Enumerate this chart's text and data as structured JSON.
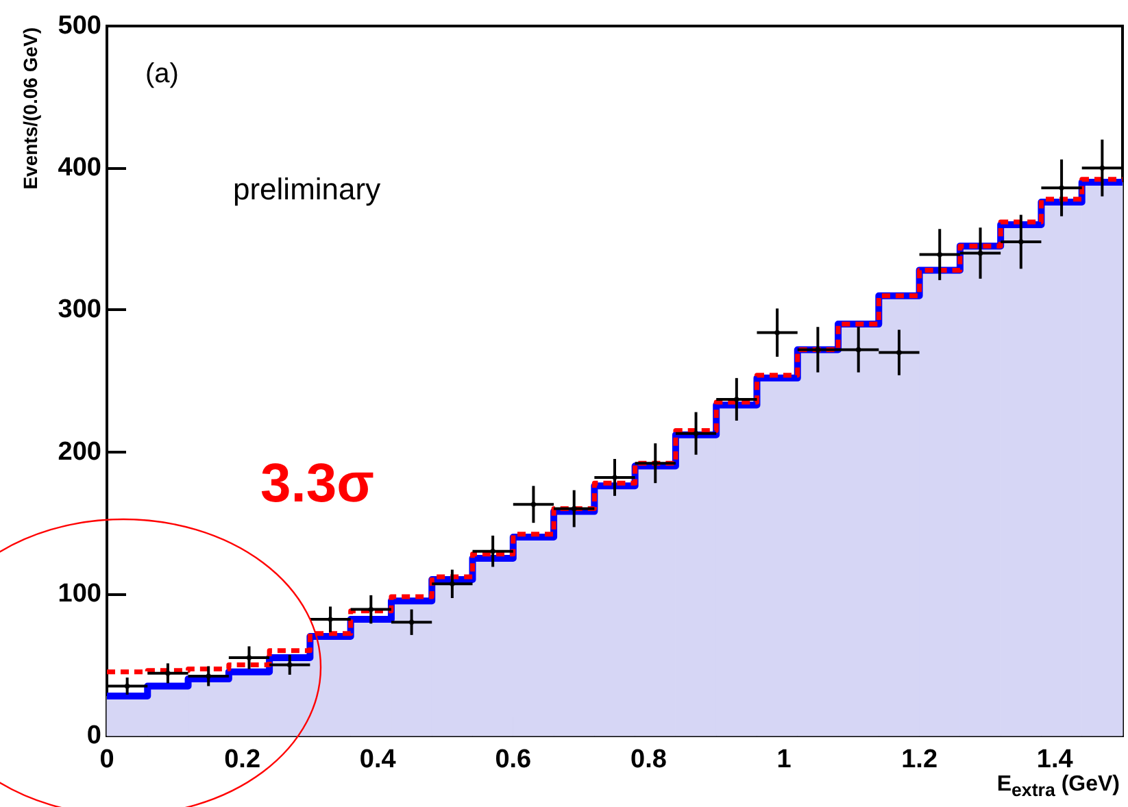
{
  "chart_data": {
    "type": "histogram",
    "xlabel": "E$_{extra}$ (GeV)",
    "ylabel": "Events/(0.06 GeV)",
    "annotations": [
      "(a)",
      "preliminary",
      "3.3σ"
    ],
    "bins": [
      0,
      0.06,
      0.12,
      0.18,
      0.24,
      0.3,
      0.36,
      0.42,
      0.48,
      0.54,
      0.6,
      0.66,
      0.72,
      0.78,
      0.84,
      0.9,
      0.96,
      1.02,
      1.08,
      1.14,
      1.2,
      1.26,
      1.32,
      1.38,
      1.44,
      1.5
    ],
    "xlim": [
      0,
      1.5
    ],
    "xticks": [
      0,
      0.2,
      0.4,
      0.6,
      0.8,
      1,
      1.2,
      1.4
    ],
    "ylim": [
      0,
      500
    ],
    "yticks": [
      0,
      100,
      200,
      300,
      400,
      500
    ],
    "grid": false,
    "series": [
      {
        "color": "#d6d6f5",
        "values": [
          28,
          35,
          40,
          45,
          55,
          70,
          82,
          95,
          110,
          125,
          140,
          158,
          176,
          190,
          212,
          233,
          252,
          272,
          290,
          310,
          328,
          345,
          360,
          376,
          390
        ]
      },
      {
        "type": "step",
        "color": "#0000ff",
        "x": [
          0,
          0.06,
          0.12,
          0.18,
          0.24,
          0.3,
          0.36,
          0.42,
          0.48,
          0.54,
          0.6,
          0.66,
          0.72,
          0.78,
          0.84,
          0.9,
          0.96,
          1.02,
          1.08,
          1.14,
          1.2,
          1.26,
          1.32,
          1.38,
          1.44,
          1.5
        ],
        "values": [
          28,
          35,
          40,
          45,
          55,
          70,
          82,
          95,
          110,
          125,
          140,
          158,
          176,
          190,
          212,
          233,
          252,
          272,
          290,
          310,
          328,
          345,
          360,
          376,
          390,
          390
        ]
      },
      {
        "type": "step",
        "color": "#ff0000",
        "line_style": "dashed",
        "x": [
          0,
          0.06,
          0.12,
          0.18,
          0.24,
          0.3,
          0.36,
          0.42,
          0.48,
          0.54,
          0.6,
          0.66,
          0.72,
          0.78,
          0.84,
          0.9,
          0.96,
          1.02,
          1.08,
          1.14,
          1.2,
          1.26,
          1.32,
          1.38,
          1.44,
          1.5
        ],
        "values": [
          45,
          46,
          47,
          50,
          60,
          72,
          88,
          98,
          112,
          128,
          142,
          160,
          178,
          192,
          215,
          235,
          254,
          272,
          290,
          310,
          328,
          345,
          362,
          378,
          392,
          392
        ]
      },
      {
        "type": "scatter",
        "color": "#000000",
        "marker": "circle",
        "x": [
          0.03,
          0.09,
          0.15,
          0.21,
          0.27,
          0.33,
          0.39,
          0.45,
          0.51,
          0.57,
          0.63,
          0.69,
          0.75,
          0.81,
          0.87,
          0.93,
          0.99,
          1.05,
          1.11,
          1.17,
          1.23,
          1.29,
          1.35,
          1.41,
          1.47
        ],
        "values": [
          35,
          44,
          42,
          55,
          50,
          82,
          89,
          80,
          107,
          130,
          163,
          160,
          182,
          192,
          213,
          237,
          284,
          272,
          272,
          270,
          339,
          340,
          348,
          386,
          400
        ],
        "errors": [
          6,
          7,
          7,
          8,
          7,
          9,
          10,
          9,
          10,
          11,
          13,
          13,
          13,
          14,
          15,
          15,
          17,
          16,
          16,
          16,
          18,
          18,
          19,
          20,
          20
        ],
        "xerrors": [
          0.03,
          0.03,
          0.03,
          0.03,
          0.03,
          0.03,
          0.03,
          0.03,
          0.03,
          0.03,
          0.03,
          0.03,
          0.03,
          0.03,
          0.03,
          0.03,
          0.03,
          0.03,
          0.03,
          0.03,
          0.03,
          0.03,
          0.03,
          0.03,
          0.03
        ]
      }
    ]
  }
}
